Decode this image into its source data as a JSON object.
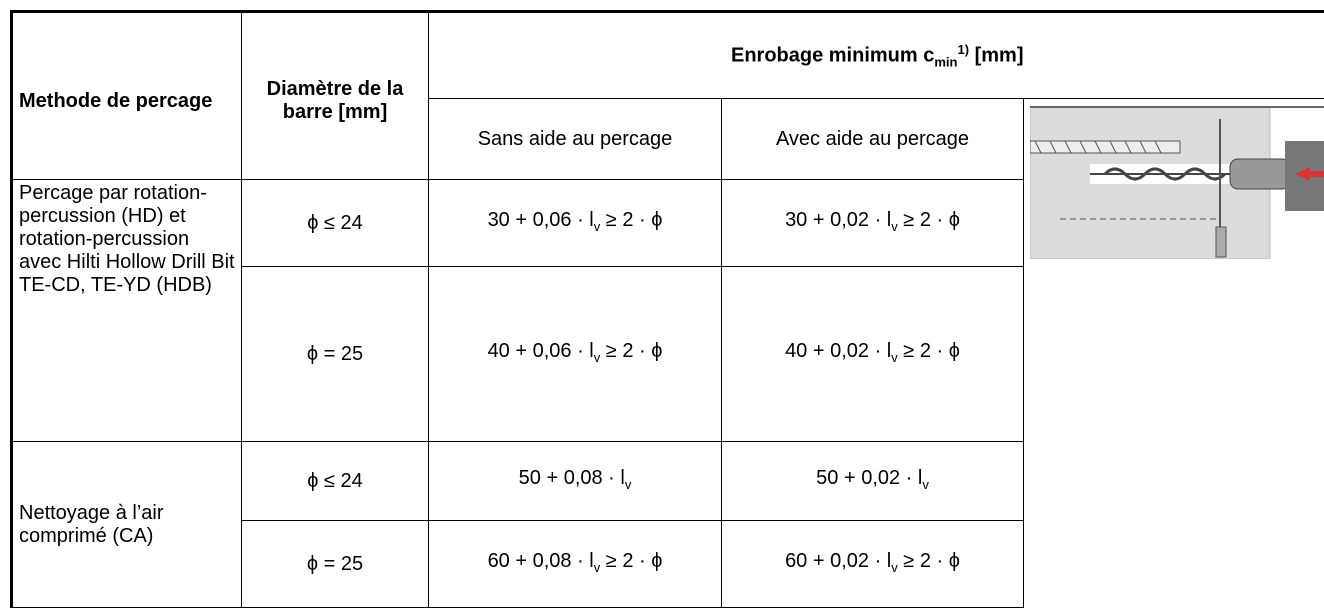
{
  "table": {
    "header": {
      "method": "Methode de percage",
      "diameter": "Diamètre de la barre [mm]",
      "cover": {
        "pre": "Enrobage minimum c",
        "sub": "min",
        "sup": "1)",
        "post": " [mm]"
      },
      "without": "Sans aide au percage",
      "with": "Avec aide au percage"
    },
    "groups": [
      {
        "method": "Percage par rotation-percussion (HD) et rotation-percussion avec Hilti Hollow Drill Bit TE-CD, TE-YD (HDB)",
        "rows": [
          {
            "diameter": "ϕ ≤ 24",
            "without": [
              "30 + 0,06 · l",
              "v",
              " ≥ 2 · ϕ"
            ],
            "with": [
              "30 + 0,02 · l",
              "v",
              " ≥ 2 · ϕ"
            ]
          },
          {
            "diameter": "ϕ = 25",
            "without": [
              "40 + 0,06 · l",
              "v",
              " ≥ 2 · ϕ"
            ],
            "with": [
              "40 + 0,02 · l",
              "v",
              " ≥ 2 · ϕ"
            ]
          }
        ]
      },
      {
        "method": "Nettoyage à l’air comprimé (CA)",
        "rows": [
          {
            "diameter": "ϕ ≤ 24",
            "without": [
              "50 + 0,08 · l",
              "v"
            ],
            "with": [
              "50 + 0,02 · l",
              "v"
            ]
          },
          {
            "diameter": "ϕ = 25",
            "without": [
              "60 + 0,08 · l",
              "v",
              " ≥ 2 · ϕ"
            ],
            "with": [
              "60 + 0,02 · l",
              "v",
              " ≥ 2 · ϕ"
            ]
          }
        ]
      }
    ]
  }
}
